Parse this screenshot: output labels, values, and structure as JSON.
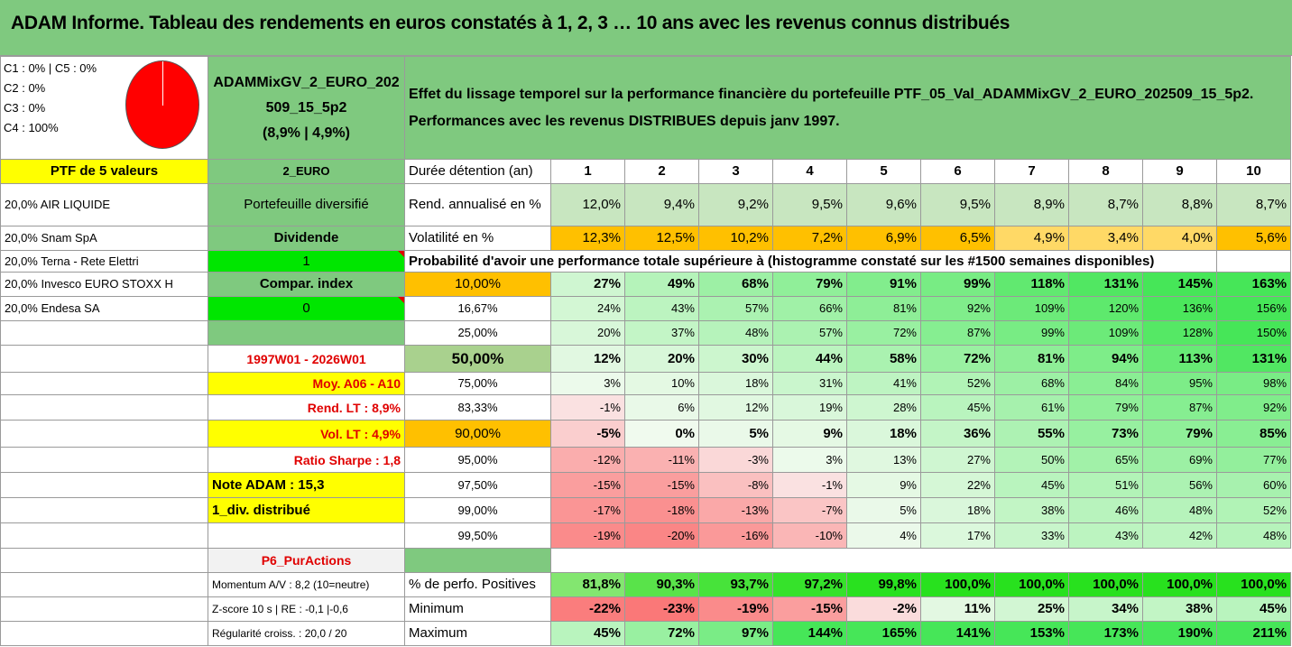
{
  "title": "ADAM Informe. Tableau des rendements en euros constatés à 1, 2, 3 … 10 ans avec les revenus connus distribués",
  "composition": [
    "C1 : 0% | C5 : 0%",
    "C2 : 0%",
    "C3 : 0%",
    "C4 : 100%"
  ],
  "pie": {
    "label": "composition-pie",
    "color": "#ff0000",
    "values": {
      "C4": 100
    }
  },
  "fund": {
    "line1": "ADAMMixGV_2_EURO_202",
    "line2": "509_15_5p2",
    "line3": "(8,9% | 4,9%)"
  },
  "description": {
    "line1": "Effet du lissage temporel sur la performance financière du portefeuille PTF_05_Val_ADAMMixGV_2_EURO_202509_15_5p2.",
    "line2": "Performances avec les revenus DISTRIBUES depuis janv 1997."
  },
  "left": {
    "ptf": "PTF de 5 valeurs",
    "holdings": [
      "20,0% AIR LIQUIDE",
      "20,0% Snam SpA",
      "20,0% Terna - Rete Elettri",
      "20,0% Invesco EURO STOXX H",
      "20,0% Endesa SA"
    ]
  },
  "mid": {
    "currency": "2_EURO",
    "type": "Portefeuille diversifié",
    "dividend_label": "Dividende",
    "dividend_value": "1",
    "compar_label": "Compar. index",
    "compar_value": "0",
    "period": "1997W01 - 2026W01",
    "moy": "Moy. A06 - A10",
    "rend_lt": "Rend. LT : 8,9%",
    "vol_lt": "Vol. LT : 4,9%",
    "sharpe": "Ratio Sharpe : 1,8",
    "note": "Note ADAM : 15,3",
    "div": "1_div. distribué",
    "strategy": "P6_PurActions",
    "momentum": "Momentum A/V : 8,2 (10=neutre)",
    "zscore": "Z-score 10 s | RE : -0,1 |-0,6",
    "regularite": "Régularité croiss. : 20,0 / 20"
  },
  "table": {
    "duration_label": "Durée détention (an)",
    "years": [
      "1",
      "2",
      "3",
      "4",
      "5",
      "6",
      "7",
      "8",
      "9",
      "10"
    ],
    "rend_label": "Rend. annualisé en %",
    "rend": [
      "12,0%",
      "9,4%",
      "9,2%",
      "9,5%",
      "9,6%",
      "9,5%",
      "8,9%",
      "8,7%",
      "8,8%",
      "8,7%"
    ],
    "vol_label": "Volatilité en %",
    "vol": [
      "12,3%",
      "12,5%",
      "10,2%",
      "7,2%",
      "6,9%",
      "6,5%",
      "4,9%",
      "3,4%",
      "4,0%",
      "5,6%"
    ],
    "prob_label": "Probabilité d'avoir une performance totale supérieure à (histogramme constaté sur les #1500 semaines disponibles)",
    "quantiles": [
      {
        "p": "10,00%",
        "v": [
          "27%",
          "49%",
          "68%",
          "79%",
          "91%",
          "99%",
          "118%",
          "131%",
          "145%",
          "163%"
        ]
      },
      {
        "p": "16,67%",
        "v": [
          "24%",
          "43%",
          "57%",
          "66%",
          "81%",
          "92%",
          "109%",
          "120%",
          "136%",
          "156%"
        ]
      },
      {
        "p": "25,00%",
        "v": [
          "20%",
          "37%",
          "48%",
          "57%",
          "72%",
          "87%",
          "99%",
          "109%",
          "128%",
          "150%"
        ]
      },
      {
        "p": "50,00%",
        "v": [
          "12%",
          "20%",
          "30%",
          "44%",
          "58%",
          "72%",
          "81%",
          "94%",
          "113%",
          "131%"
        ]
      },
      {
        "p": "75,00%",
        "v": [
          "3%",
          "10%",
          "18%",
          "31%",
          "41%",
          "52%",
          "68%",
          "84%",
          "95%",
          "98%"
        ]
      },
      {
        "p": "83,33%",
        "v": [
          "-1%",
          "6%",
          "12%",
          "19%",
          "28%",
          "45%",
          "61%",
          "79%",
          "87%",
          "92%"
        ]
      },
      {
        "p": "90,00%",
        "v": [
          "-5%",
          "0%",
          "5%",
          "9%",
          "18%",
          "36%",
          "55%",
          "73%",
          "79%",
          "85%"
        ]
      },
      {
        "p": "95,00%",
        "v": [
          "-12%",
          "-11%",
          "-3%",
          "3%",
          "13%",
          "27%",
          "50%",
          "65%",
          "69%",
          "77%"
        ]
      },
      {
        "p": "97,50%",
        "v": [
          "-15%",
          "-15%",
          "-8%",
          "-1%",
          "9%",
          "22%",
          "45%",
          "51%",
          "56%",
          "60%"
        ]
      },
      {
        "p": "99,00%",
        "v": [
          "-17%",
          "-18%",
          "-13%",
          "-7%",
          "5%",
          "18%",
          "38%",
          "46%",
          "48%",
          "52%"
        ]
      },
      {
        "p": "99,50%",
        "v": [
          "-19%",
          "-20%",
          "-16%",
          "-10%",
          "4%",
          "17%",
          "33%",
          "43%",
          "42%",
          "48%"
        ]
      }
    ],
    "pos_label": "% de perfo. Positives",
    "pos": [
      "81,8%",
      "90,3%",
      "93,7%",
      "97,2%",
      "99,8%",
      "100,0%",
      "100,0%",
      "100,0%",
      "100,0%",
      "100,0%"
    ],
    "min_label": "Minimum",
    "min": [
      "-22%",
      "-23%",
      "-19%",
      "-15%",
      "-2%",
      "11%",
      "25%",
      "34%",
      "38%",
      "45%"
    ],
    "max_label": "Maximum",
    "max": [
      "45%",
      "72%",
      "97%",
      "144%",
      "165%",
      "141%",
      "153%",
      "173%",
      "190%",
      "211%"
    ]
  }
}
